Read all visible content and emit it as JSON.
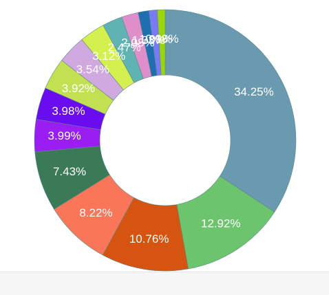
{
  "chart_data": {
    "type": "donut",
    "categories": [
      null,
      null,
      null,
      null,
      null,
      null,
      null,
      null,
      null,
      null,
      null,
      null,
      null,
      null,
      null
    ],
    "values": [
      34.25,
      12.92,
      10.76,
      8.22,
      7.43,
      3.99,
      3.98,
      3.92,
      3.54,
      3.12,
      2.47,
      2.08,
      1.33,
      1.01,
      0.98
    ],
    "value_labels": [
      "34.25%",
      "12.92%",
      "10.76%",
      "8.22%",
      "7.43%",
      "3.99%",
      "3.98%",
      "3.92%",
      "3.54%",
      "3.12%",
      "2.47%",
      "2.08%",
      "1.33%",
      "1.01%",
      "0.98%"
    ],
    "colors": [
      "#6a9ab0",
      "#6cc56c",
      "#d5540f",
      "#f97659",
      "#3a7a57",
      "#9a1ef2",
      "#6a0cf0",
      "#c2e052",
      "#cfa9e0",
      "#d3f04e",
      "#5fb3b3",
      "#de8ec8",
      "#1f6fb0",
      "#7a7af5",
      "#9ad40a"
    ]
  }
}
